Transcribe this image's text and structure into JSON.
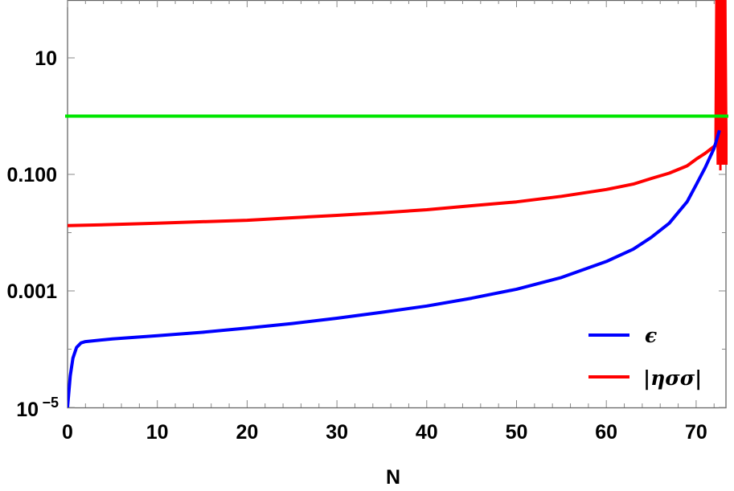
{
  "chart_data": {
    "type": "line",
    "title": "",
    "xlabel": "N",
    "ylabel": "",
    "xlim": [
      0,
      73.4
    ],
    "ylim": [
      1e-05,
      100
    ],
    "yscale": "log",
    "grid": false,
    "legend_position": "lower right",
    "x_ticks": [
      0,
      10,
      20,
      30,
      40,
      50,
      60,
      70
    ],
    "y_ticks": [
      {
        "value": 10,
        "label": "10"
      },
      {
        "value": 0.1,
        "label": "0.100"
      },
      {
        "value": 0.001,
        "label": "0.001"
      },
      {
        "value": 1e-05,
        "label": "10",
        "superscript": "−5"
      }
    ],
    "series": [
      {
        "name": "ϵ",
        "color": "#0000ff",
        "x": [
          0,
          0.3,
          0.6,
          1.0,
          1.5,
          2,
          5,
          10,
          15,
          20,
          25,
          30,
          35,
          40,
          45,
          50,
          55,
          60,
          63,
          65,
          67,
          69,
          70,
          71,
          72,
          72.6
        ],
        "y": [
          1e-05,
          3.5e-05,
          7e-05,
          0.000107,
          0.000128,
          0.000135,
          0.00015,
          0.00017,
          0.000195,
          0.00023,
          0.000275,
          0.00034,
          0.00043,
          0.00055,
          0.00075,
          0.00107,
          0.0017,
          0.0032,
          0.0052,
          0.0083,
          0.0145,
          0.034,
          0.066,
          0.13,
          0.28,
          0.57
        ]
      },
      {
        "name": "|ησσ|",
        "color": "#ff0000",
        "x": [
          0,
          5,
          10,
          15,
          20,
          25,
          30,
          35,
          40,
          45,
          50,
          55,
          60,
          63,
          65,
          67,
          69,
          70,
          71,
          72.2
        ],
        "y": [
          0.0132,
          0.0138,
          0.0145,
          0.0154,
          0.0163,
          0.018,
          0.0198,
          0.022,
          0.0247,
          0.029,
          0.0337,
          0.042,
          0.055,
          0.068,
          0.085,
          0.105,
          0.14,
          0.182,
          0.23,
          0.32
        ],
        "note": "rapid oscillation for N > 72.3 spanning roughly 0.1 to above 100"
      },
      {
        "name": "reference line",
        "color": "#00ee00",
        "x": [
          0,
          73.4
        ],
        "y": [
          1,
          1
        ]
      }
    ],
    "legend": [
      {
        "label": "ϵ",
        "color": "#0000ff"
      },
      {
        "label": "|ησσ|",
        "color": "#ff0000"
      }
    ]
  },
  "labels": {
    "xlabel": "N",
    "x_ticks": [
      "0",
      "10",
      "20",
      "30",
      "40",
      "50",
      "60",
      "70"
    ],
    "y_tick_10": "10",
    "y_tick_0100": "0.100",
    "y_tick_0001": "0.001",
    "y_tick_1e5_base": "10",
    "y_tick_1e5_exp": "−5",
    "legend_eps": "ϵ",
    "legend_eta": "|ησσ|"
  }
}
